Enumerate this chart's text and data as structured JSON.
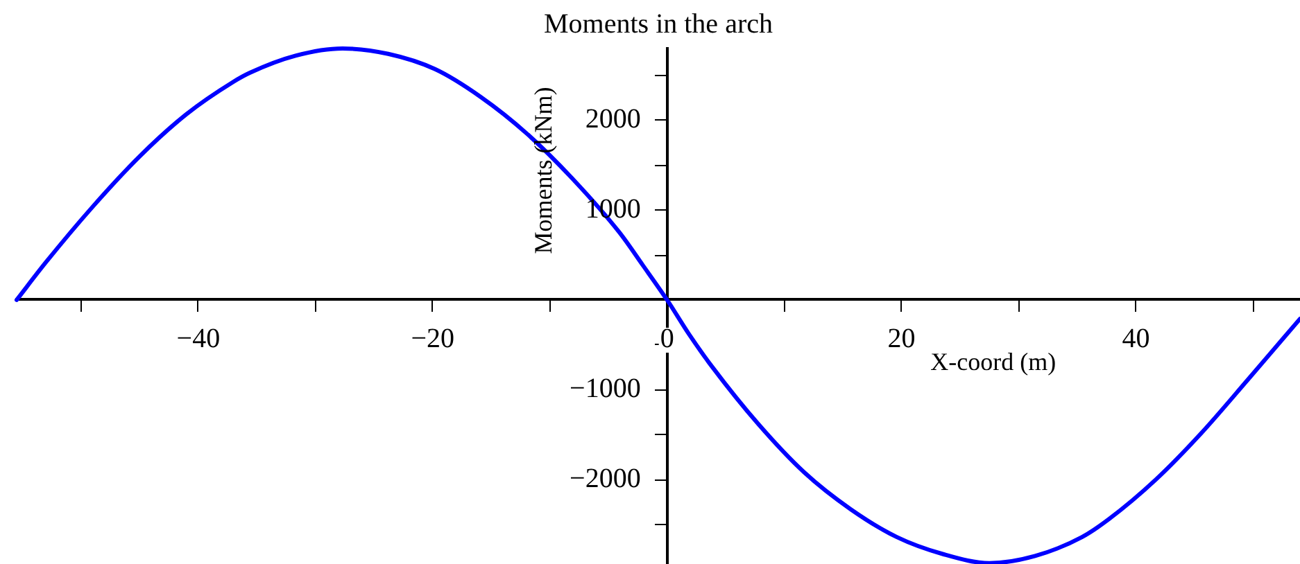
{
  "chart_data": {
    "type": "line",
    "title": "Moments in the arch",
    "xlabel": "X-coord (m)",
    "ylabel": "Moments (kNm)",
    "x": [
      -55.5,
      -53,
      -49,
      -45,
      -41,
      -37,
      -35.6,
      -31.7,
      -27.7,
      -23.8,
      -19.8,
      -15.9,
      -11.95,
      -8,
      -4.06,
      -2.09,
      0,
      1.86,
      3.82,
      7.77,
      11.7,
      15.66,
      19.6,
      23.55,
      27.5,
      31.4,
      35.4,
      37.7,
      41.7,
      45.6,
      49.6,
      54
    ],
    "values": [
      0,
      420,
      1040,
      1600,
      2070,
      2430,
      2530,
      2720,
      2800,
      2740,
      2570,
      2260,
      1850,
      1340,
      750,
      390,
      0,
      -380,
      -740,
      -1380,
      -1920,
      -2330,
      -2640,
      -2830,
      -2930,
      -2850,
      -2640,
      -2440,
      -2000,
      -1480,
      -880,
      -210
    ],
    "color": "#0000ff",
    "xlim": [
      -55.5,
      54
    ],
    "ylim": [
      -2940,
      2800
    ],
    "xticks": [
      {
        "value": -50,
        "label": null
      },
      {
        "value": -40,
        "label": "−40"
      },
      {
        "value": -30,
        "label": null
      },
      {
        "value": -20,
        "label": "−20"
      },
      {
        "value": -10,
        "label": null
      },
      0,
      {
        "value": 10,
        "label": null
      },
      20,
      {
        "value": 30,
        "label": null
      },
      40,
      {
        "value": 50,
        "label": null
      }
    ],
    "yticks": [
      {
        "value": -2500,
        "label": null
      },
      {
        "value": -2000,
        "label": "−2000"
      },
      {
        "value": -1500,
        "label": null
      },
      {
        "value": -1000,
        "label": "−1000"
      },
      {
        "value": -500,
        "label": null
      },
      {
        "value": 500,
        "label": null
      },
      1000,
      {
        "value": 1500,
        "label": null
      },
      2000,
      {
        "value": 2500,
        "label": null
      }
    ]
  }
}
